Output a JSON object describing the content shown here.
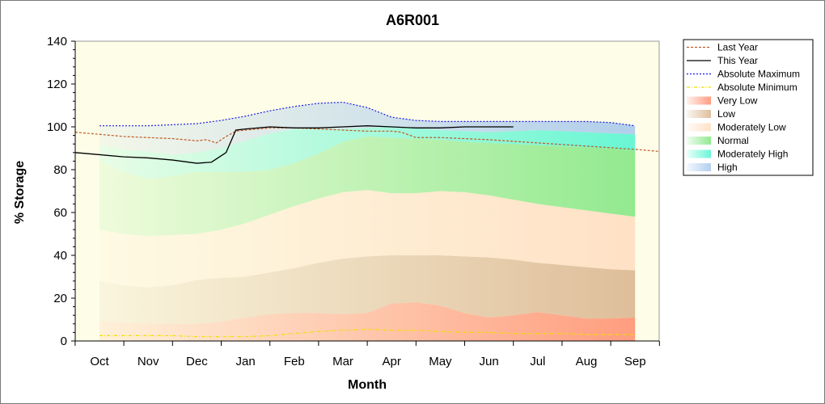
{
  "chart_data": {
    "type": "area",
    "title": "A6R001",
    "xlabel": "Month",
    "ylabel": "% Storage",
    "ylim": [
      0,
      140
    ],
    "yticks": [
      0,
      20,
      40,
      60,
      80,
      100,
      120,
      140
    ],
    "categories": [
      "Oct",
      "Nov",
      "Dec",
      "Jan",
      "Feb",
      "Mar",
      "Apr",
      "May",
      "Jun",
      "Jul",
      "Aug",
      "Sep"
    ],
    "legend_position": "right",
    "grid": false,
    "bands": {
      "x": [
        0,
        0.5,
        1,
        1.5,
        2,
        2.5,
        3,
        3.5,
        4,
        4.5,
        5,
        5.5,
        6,
        6.5,
        7,
        7.5,
        8,
        8.5,
        9,
        9.5,
        10,
        10.5,
        11
      ],
      "series": [
        {
          "name": "Very Low",
          "color": "#ff8c6c",
          "values": [
            9.5,
            8.5,
            8,
            8,
            8,
            9,
            11,
            12.5,
            13,
            13,
            12.5,
            13,
            17.5,
            18,
            16.5,
            13,
            11,
            12,
            13.5,
            12,
            10.5,
            10.5,
            11
          ]
        },
        {
          "name": "Low",
          "color": "#d9b38c",
          "values": [
            28,
            26,
            25,
            26,
            28.5,
            29.5,
            30,
            32,
            34,
            36.5,
            38.5,
            39.5,
            40,
            40,
            40,
            39.5,
            39,
            38,
            36.5,
            35.5,
            34.5,
            33.5,
            33
          ]
        },
        {
          "name": "Moderately Low",
          "color": "#ffdcbf",
          "values": [
            52,
            50,
            49,
            49.5,
            50,
            52,
            55,
            59,
            63,
            66.5,
            69.5,
            70.5,
            69,
            69,
            70,
            69.5,
            68,
            66,
            64,
            62.5,
            61,
            59.5,
            58
          ]
        },
        {
          "name": "Normal",
          "color": "#7fe67f",
          "values": [
            84,
            79,
            75.5,
            77,
            79,
            79,
            79,
            80,
            83,
            87.5,
            93,
            95.5,
            95,
            94.5,
            94,
            93,
            92.5,
            92,
            91.5,
            91,
            90.5,
            90,
            89
          ]
        },
        {
          "name": "Moderately High",
          "color": "#4ff5d0",
          "values": [
            91.5,
            89.5,
            88.5,
            87,
            88,
            90,
            93.5,
            97,
            99,
            99,
            99,
            99.5,
            100,
            99.5,
            98.5,
            98,
            97.5,
            98,
            98.5,
            98,
            97.5,
            97,
            96.5
          ]
        },
        {
          "name": "High",
          "color": "#a4c6ec",
          "values": [
            100.5,
            100.5,
            100.5,
            101,
            101.5,
            103,
            105,
            107.5,
            109.5,
            111,
            111.5,
            109,
            104.5,
            103,
            102.5,
            102.5,
            102.5,
            102.5,
            102.5,
            102.5,
            102.5,
            102,
            100.5
          ]
        }
      ]
    },
    "lines": [
      {
        "name": "Last Year",
        "color": "#c05820",
        "style": "dashed",
        "x": [
          -0.5,
          0,
          0.5,
          1,
          1.5,
          2,
          2.2,
          2.4,
          2.6,
          2.8,
          3,
          3.5,
          4,
          4.5,
          5,
          5.5,
          6,
          6.2,
          6.5,
          7,
          8,
          9,
          10,
          11,
          11.5
        ],
        "values": [
          97.5,
          96.5,
          95.5,
          95,
          94.5,
          93.5,
          94,
          92.5,
          95.5,
          98,
          98.5,
          99.5,
          99.5,
          99,
          98.5,
          98,
          98,
          97.5,
          95,
          95,
          94,
          92.5,
          91,
          89.5,
          88.5
        ]
      },
      {
        "name": "This Year",
        "color": "#000000",
        "style": "solid",
        "x": [
          -0.5,
          0,
          0.5,
          1,
          1.5,
          2,
          2.3,
          2.6,
          2.8,
          3,
          3.5,
          4,
          4.5,
          5,
          5.5,
          6,
          6.5,
          7,
          7.5,
          8,
          8.5
        ],
        "values": [
          88,
          87,
          86,
          85.5,
          84.5,
          83,
          83.5,
          88,
          98.5,
          99,
          100,
          99.5,
          99.5,
          100,
          100.5,
          100,
          99.5,
          99.5,
          100,
          100,
          100
        ]
      },
      {
        "name": "Absolute Maximum",
        "color": "#1a1ae6",
        "style": "dotted",
        "x": [
          0,
          0.5,
          1,
          1.5,
          2,
          2.5,
          3,
          3.5,
          4,
          4.5,
          5,
          5.5,
          6,
          6.5,
          7,
          7.5,
          8,
          8.5,
          9,
          9.5,
          10,
          10.5,
          11
        ],
        "values": [
          100.5,
          100.5,
          100.5,
          101,
          101.5,
          103,
          105,
          107.5,
          109.5,
          111,
          111.5,
          109,
          104.5,
          103,
          102.5,
          102.5,
          102.5,
          102.5,
          102.5,
          102.5,
          102.5,
          102,
          100.5
        ]
      },
      {
        "name": "Absolute Minimum",
        "color": "#f0e000",
        "style": "dashdot",
        "x": [
          0,
          0.5,
          1,
          1.5,
          2,
          2.5,
          3,
          3.5,
          4,
          4.5,
          5,
          5.5,
          6,
          6.5,
          7,
          7.5,
          8,
          8.5,
          9,
          9.5,
          10,
          10.5,
          11
        ],
        "values": [
          2.5,
          2.5,
          2.5,
          2.5,
          2,
          2,
          2,
          2.5,
          3.5,
          4.5,
          5,
          5.5,
          5,
          5,
          4.5,
          4,
          4,
          3.5,
          3.5,
          3.5,
          3,
          3,
          3
        ]
      }
    ],
    "legend": [
      "Last Year",
      "This Year",
      "Absolute Maximum",
      "Absolute Minimum",
      "Very Low",
      "Low",
      "Moderately Low",
      "Normal",
      "Moderately High",
      "High"
    ]
  }
}
